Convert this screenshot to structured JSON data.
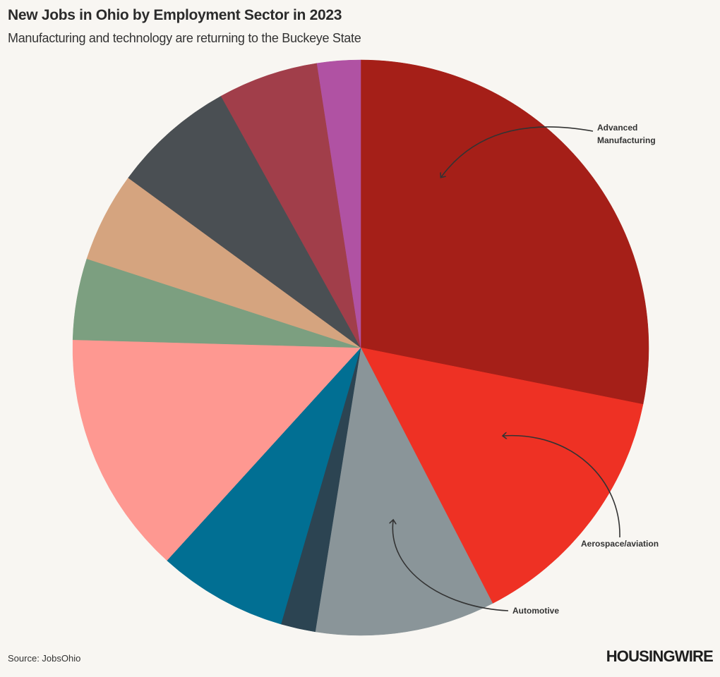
{
  "header": {
    "title": "New Jobs in Ohio by Employment Sector in 2023",
    "subtitle": "Manufacturing and technology are returning to the Buckeye State"
  },
  "footer": {
    "source": "Source: JobsOhio",
    "logo_text": "HOUSINGWIRE"
  },
  "chart_data": {
    "type": "pie",
    "title": "New Jobs in Ohio by Employment Sector in 2023",
    "subtitle": "Manufacturing and technology are returning to the Buckeye State",
    "start_angle": "12 o'clock",
    "direction": "clockwise",
    "legend": "none",
    "slices": [
      {
        "label": "Advanced Manufacturing",
        "value": 29.0,
        "color": "#a51f18"
      },
      {
        "label": "Aerospace/aviation",
        "value": 14.7,
        "color": "#ee3124"
      },
      {
        "label": "Automotive",
        "value": 10.4,
        "color": "#8a9599"
      },
      {
        "label": "",
        "value": 2.0,
        "color": "#2c4452"
      },
      {
        "label": "",
        "value": 7.5,
        "color": "#016f93"
      },
      {
        "label": "",
        "value": 14.1,
        "color": "#fe9891"
      },
      {
        "label": "",
        "value": 4.7,
        "color": "#7c9f80"
      },
      {
        "label": "",
        "value": 5.2,
        "color": "#d5a47f"
      },
      {
        "label": "",
        "value": 7.1,
        "color": "#4a4f53"
      },
      {
        "label": "",
        "value": 5.8,
        "color": "#a13e4a"
      },
      {
        "label": "",
        "value": 2.5,
        "color": "#b052a3"
      }
    ],
    "callouts": [
      {
        "text_lines": [
          "Advanced",
          "Manufacturing"
        ],
        "slice": 0
      },
      {
        "text_lines": [
          "Aerospace/aviation"
        ],
        "slice": 1
      },
      {
        "text_lines": [
          "Automotive"
        ],
        "slice": 2
      }
    ]
  }
}
